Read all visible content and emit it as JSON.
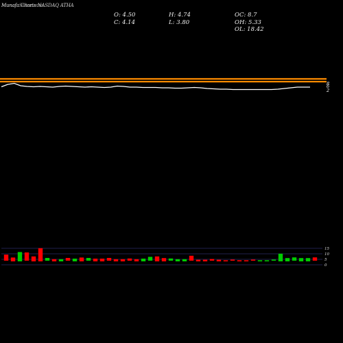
{
  "header": {
    "brand": "MunafaSutra.com",
    "title": "Munafa Charts NASDAQ ATHA"
  },
  "ohlc": {
    "open": "O: 4.50",
    "high": "H: 4.74",
    "low": "L: 3.80",
    "close": "C: 4.14",
    "oc": "OC: 8.7",
    "oh": "OH: 5.33",
    "ol": "OL: 18.42"
  },
  "chart_data": [
    {
      "type": "line",
      "series": [
        {
          "values": [
            4.9,
            5.6,
            5.9,
            5.2,
            5.0,
            4.9,
            5.0,
            4.9,
            4.8,
            5.0,
            5.1,
            5.0,
            4.9,
            4.8,
            4.9,
            4.8,
            4.7,
            4.8,
            5.1,
            5.0,
            4.8,
            4.8,
            4.7,
            4.7,
            4.7,
            4.6,
            4.6,
            4.5,
            4.5,
            4.6,
            4.7,
            4.6,
            4.4,
            4.3,
            4.2,
            4.2,
            4.1,
            4.1,
            4.1,
            4.1,
            4.1,
            4.1,
            4.1,
            4.2,
            4.4,
            4.6,
            4.8,
            4.8,
            4.8
          ]
        }
      ],
      "y_tick_labels": [
        "8",
        "6",
        "2"
      ],
      "guide_lines": [
        {
          "level": "upper",
          "color": "#ff8c00"
        },
        {
          "level": "lower",
          "color": "#ff8c00"
        }
      ]
    },
    {
      "type": "bar",
      "title": "",
      "y_tick_labels": [
        "15",
        "10",
        "5",
        "0"
      ],
      "ylim": [
        0,
        15
      ],
      "series": [
        {
          "colors": [
            "#ff0000",
            "#ff0000",
            "#00cc00",
            "#ff0000",
            "#ff0000",
            "#ff0000",
            "#00cc00",
            "#ff0000",
            "#00cc00",
            "#ff0000",
            "#00cc00",
            "#ff0000",
            "#00cc00",
            "#ff0000",
            "#ff0000",
            "#ff0000",
            "#ff0000",
            "#ff0000",
            "#ff0000",
            "#ff0000",
            "#00cc00",
            "#00cc00",
            "#ff0000",
            "#ff0000",
            "#00cc00",
            "#00cc00",
            "#00cc00",
            "#ff0000",
            "#ff0000",
            "#ff0000",
            "#ff0000",
            "#ff0000",
            "#ff0000",
            "#ff0000",
            "#ff0000",
            "#ff0000",
            "#ff0000",
            "#00cc00",
            "#00cc00",
            "#00cc00",
            "#00cc00",
            "#00cc00",
            "#00cc00",
            "#00cc00",
            "#00cc00",
            "#ff0000"
          ],
          "values": [
            5.5,
            3.5,
            8.5,
            7.5,
            4.5,
            12,
            2.5,
            2.0,
            2.0,
            2.5,
            2.5,
            3.5,
            2.5,
            2.5,
            2.5,
            2.5,
            2.0,
            2.0,
            2.0,
            2.0,
            2.5,
            3.5,
            4.5,
            3.0,
            2.0,
            2.0,
            2.0,
            4.5,
            1.5,
            1.5,
            1.5,
            1.5,
            1.0,
            1.0,
            1.0,
            1.0,
            1.0,
            1.0,
            1.0,
            1.0,
            7.0,
            3.0,
            3.0,
            3.0,
            3.0,
            3.0
          ]
        }
      ]
    }
  ]
}
